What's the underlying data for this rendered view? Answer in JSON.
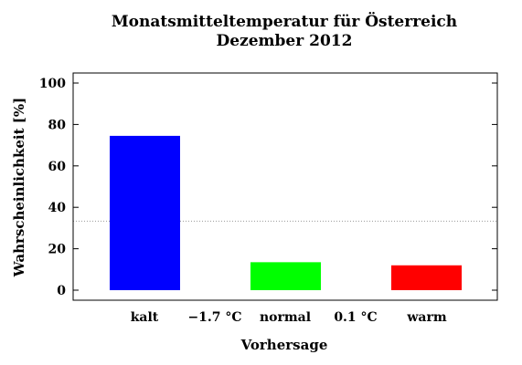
{
  "chart_data": {
    "type": "bar",
    "title": "Monatsmitteltemperatur für Österreich",
    "subtitle": "Dezember 2012",
    "xlabel": "Vorhersage",
    "ylabel": "Wahrscheinlichkeit [%]",
    "ylim": [
      0,
      100
    ],
    "yticks": [
      "0",
      "20",
      "40",
      "60",
      "80",
      "100"
    ],
    "categories": [
      "kalt",
      "normal",
      "warm"
    ],
    "values": [
      74.5,
      13.5,
      12
    ],
    "colors": [
      "#0000ff",
      "#00ff00",
      "#ff0000"
    ],
    "thresholds": [
      "−1.7 °C",
      "0.1 °C"
    ],
    "reference_line": 33.3,
    "grid": false
  }
}
